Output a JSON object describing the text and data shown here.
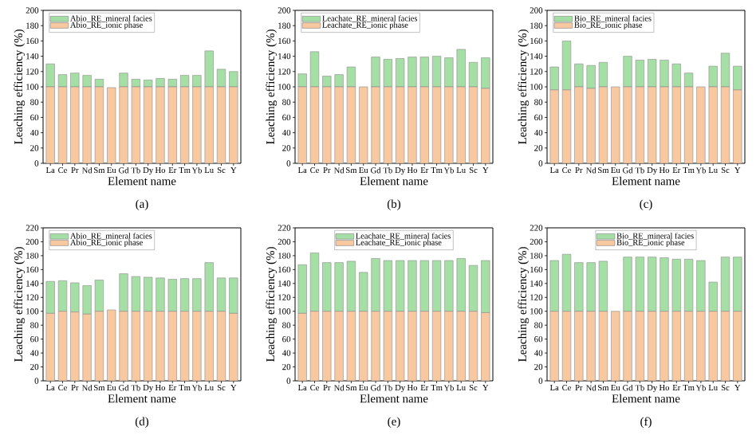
{
  "chart_data": [
    {
      "type": "bar",
      "stacked": true,
      "categories": [
        "La",
        "Ce",
        "Pr",
        "Nd",
        "Sm",
        "Eu",
        "Gd",
        "Tb",
        "Dy",
        "Ho",
        "Er",
        "Tm",
        "Yb",
        "Lu",
        "Sc",
        "Y"
      ],
      "xlabel": "Element name",
      "ylabel": "Leaching efficiency (%)",
      "ylim": [
        0,
        200
      ],
      "yticks": [
        0,
        20,
        40,
        60,
        80,
        100,
        120,
        140,
        160,
        180,
        200
      ],
      "legend": "top left",
      "annotations": [
        "(a)"
      ],
      "series": [
        {
          "name": "Abio_RE_ionic phase",
          "color": "#f8c9a0",
          "values": [
            100,
            100,
            100,
            100,
            100,
            99,
            100,
            100,
            100,
            100,
            100,
            100,
            100,
            100,
            100,
            100
          ]
        },
        {
          "name": "Abio_RE_mineral facies",
          "color": "#a6dfa6",
          "values": [
            30,
            16,
            18,
            15,
            10,
            0,
            18,
            10,
            9,
            11,
            10,
            15,
            15,
            47,
            23,
            20
          ]
        }
      ]
    },
    {
      "type": "bar",
      "stacked": true,
      "categories": [
        "La",
        "Ce",
        "Pr",
        "Nd",
        "Sm",
        "Eu",
        "Gd",
        "Tb",
        "Dy",
        "Ho",
        "Er",
        "Tm",
        "Yb",
        "Lu",
        "Sc",
        "Y"
      ],
      "xlabel": "Element name",
      "ylabel": "Leaching efficiency (%)",
      "ylim": [
        0,
        200
      ],
      "yticks": [
        0,
        20,
        40,
        60,
        80,
        100,
        120,
        140,
        160,
        180,
        200
      ],
      "legend": "top left",
      "annotations": [
        "(b)"
      ],
      "series": [
        {
          "name": "Leachate_RE_ionic phase",
          "color": "#f8c9a0",
          "values": [
            100,
            100,
            100,
            100,
            100,
            100,
            100,
            100,
            100,
            100,
            100,
            100,
            100,
            100,
            100,
            98
          ]
        },
        {
          "name": "Leachate_RE_mineral facies",
          "color": "#a6dfa6",
          "values": [
            17,
            46,
            14,
            16,
            26,
            0,
            39,
            36,
            37,
            39,
            39,
            40,
            38,
            49,
            32,
            40
          ]
        }
      ]
    },
    {
      "type": "bar",
      "stacked": true,
      "categories": [
        "La",
        "Ce",
        "Pr",
        "Nd",
        "Sm",
        "Eu",
        "Gd",
        "Tb",
        "Dy",
        "Ho",
        "Er",
        "Tm",
        "Yb",
        "Lu",
        "Sc",
        "Y"
      ],
      "xlabel": "Element name",
      "ylabel": "Leaching efficiency (%)",
      "ylim": [
        0,
        200
      ],
      "yticks": [
        0,
        20,
        40,
        60,
        80,
        100,
        120,
        140,
        160,
        180,
        200
      ],
      "legend": "top left",
      "annotations": [
        "(c)"
      ],
      "series": [
        {
          "name": "Bio_RE_ionic phase",
          "color": "#f8c9a0",
          "values": [
            96,
            96,
            100,
            98,
            100,
            100,
            100,
            100,
            100,
            100,
            100,
            100,
            100,
            100,
            100,
            96
          ]
        },
        {
          "name": "Bio_RE_mineral facies",
          "color": "#a6dfa6",
          "values": [
            30,
            64,
            30,
            30,
            32,
            0,
            40,
            35,
            36,
            35,
            30,
            18,
            0,
            27,
            44,
            31
          ]
        }
      ]
    },
    {
      "type": "bar",
      "stacked": true,
      "categories": [
        "La",
        "Ce",
        "Pr",
        "Nd",
        "Sm",
        "Eu",
        "Gd",
        "Tb",
        "Dy",
        "Ho",
        "Er",
        "Tm",
        "Yb",
        "Lu",
        "Sc",
        "Y"
      ],
      "xlabel": "Element name",
      "ylabel": "Leaching efficiency (%)",
      "ylim": [
        0,
        220
      ],
      "yticks": [
        0,
        20,
        40,
        60,
        80,
        100,
        120,
        140,
        160,
        180,
        200,
        220
      ],
      "legend": "top left",
      "annotations": [
        "(d)"
      ],
      "series": [
        {
          "name": "Abio_RE_ionic phase",
          "color": "#f8c9a0",
          "values": [
            97,
            100,
            99,
            96,
            100,
            102,
            100,
            100,
            100,
            100,
            100,
            100,
            100,
            100,
            100,
            97
          ]
        },
        {
          "name": "Abio_RE_mineral facies",
          "color": "#a6dfa6",
          "values": [
            46,
            44,
            42,
            41,
            45,
            0,
            54,
            50,
            49,
            48,
            46,
            47,
            47,
            70,
            48,
            51
          ]
        }
      ]
    },
    {
      "type": "bar",
      "stacked": true,
      "categories": [
        "La",
        "Ce",
        "Pr",
        "Nd",
        "Sm",
        "Eu",
        "Gd",
        "Tb",
        "Dy",
        "Ho",
        "Er",
        "Tm",
        "Yb",
        "Lu",
        "Sc",
        "Y"
      ],
      "xlabel": "Element name",
      "ylabel": "Leaching efficiency (%)",
      "ylim": [
        0,
        220
      ],
      "yticks": [
        0,
        20,
        40,
        60,
        80,
        100,
        120,
        140,
        160,
        180,
        200,
        220
      ],
      "legend": "top",
      "annotations": [
        "(e)"
      ],
      "series": [
        {
          "name": "Leachate_RE_ionic phase",
          "color": "#f8c9a0",
          "values": [
            97,
            100,
            100,
            100,
            100,
            100,
            100,
            100,
            100,
            100,
            100,
            100,
            100,
            100,
            100,
            98
          ]
        },
        {
          "name": "Leachate_RE_mineral facies",
          "color": "#a6dfa6",
          "values": [
            70,
            84,
            70,
            70,
            72,
            56,
            76,
            73,
            73,
            73,
            73,
            73,
            73,
            76,
            66,
            75
          ]
        }
      ]
    },
    {
      "type": "bar",
      "stacked": true,
      "categories": [
        "La",
        "Ce",
        "Pr",
        "Nd",
        "Sm",
        "Eu",
        "Gd",
        "Tb",
        "Dy",
        "Ho",
        "Er",
        "Tm",
        "Yb",
        "Lu",
        "Sc",
        "Y"
      ],
      "xlabel": "Element name",
      "ylabel": "Leaching efficiency (%)",
      "ylim": [
        0,
        220
      ],
      "yticks": [
        0,
        20,
        40,
        60,
        80,
        100,
        120,
        140,
        160,
        180,
        200,
        220
      ],
      "legend": "top",
      "annotations": [
        "(f)"
      ],
      "series": [
        {
          "name": "Bio_RE_ionic phase",
          "color": "#f8c9a0",
          "values": [
            100,
            100,
            100,
            100,
            100,
            100,
            100,
            100,
            100,
            100,
            100,
            100,
            100,
            100,
            100,
            100
          ]
        },
        {
          "name": "Bio_RE_mineral facies",
          "color": "#a6dfa6",
          "values": [
            73,
            82,
            70,
            70,
            72,
            0,
            78,
            78,
            78,
            77,
            75,
            75,
            73,
            42,
            78,
            78
          ]
        }
      ]
    }
  ]
}
